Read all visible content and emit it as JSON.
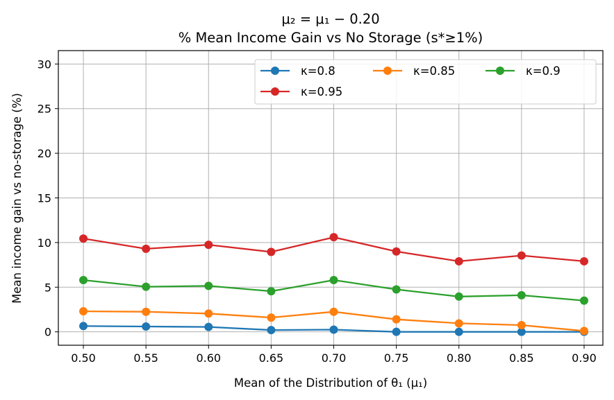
{
  "chart_data": {
    "type": "line",
    "title": "μ₂ = μ₁ − 0.20",
    "subtitle": "% Mean Income Gain vs No Storage (s*≥1%)",
    "xlabel": "Mean of the Distribution of θ₁ (μ₁)",
    "ylabel": "Mean income gain vs no-storage (%)",
    "x": [
      0.5,
      0.55,
      0.6,
      0.65,
      0.7,
      0.75,
      0.8,
      0.85,
      0.9
    ],
    "x_tick_labels": [
      "0.50",
      "0.55",
      "0.60",
      "0.65",
      "0.70",
      "0.75",
      "0.80",
      "0.85",
      "0.90"
    ],
    "xlim": [
      0.48,
      0.915
    ],
    "ylim": [
      -1.5,
      31.5
    ],
    "y_ticks": [
      0,
      5,
      10,
      15,
      20,
      25,
      30
    ],
    "y_tick_labels": [
      "0",
      "5",
      "10",
      "15",
      "20",
      "25",
      "30"
    ],
    "grid": true,
    "legend_position": "top-right",
    "legend_columns": 3,
    "series": [
      {
        "name": "κ=0.8",
        "color": "#1f77b4",
        "values": [
          0.65,
          0.6,
          0.55,
          0.2,
          0.25,
          0.0,
          0.0,
          0.0,
          0.0
        ]
      },
      {
        "name": "κ=0.85",
        "color": "#ff7f0e",
        "values": [
          2.3,
          2.25,
          2.05,
          1.6,
          2.25,
          1.4,
          0.95,
          0.75,
          0.1
        ]
      },
      {
        "name": "κ=0.9",
        "color": "#2ca02c",
        "values": [
          5.8,
          5.05,
          5.15,
          4.55,
          5.8,
          4.75,
          3.95,
          4.1,
          3.5
        ]
      },
      {
        "name": "κ=0.95",
        "color": "#d62728",
        "values": [
          10.45,
          9.3,
          9.75,
          8.95,
          10.6,
          9.0,
          7.9,
          8.55,
          7.9
        ]
      }
    ]
  }
}
